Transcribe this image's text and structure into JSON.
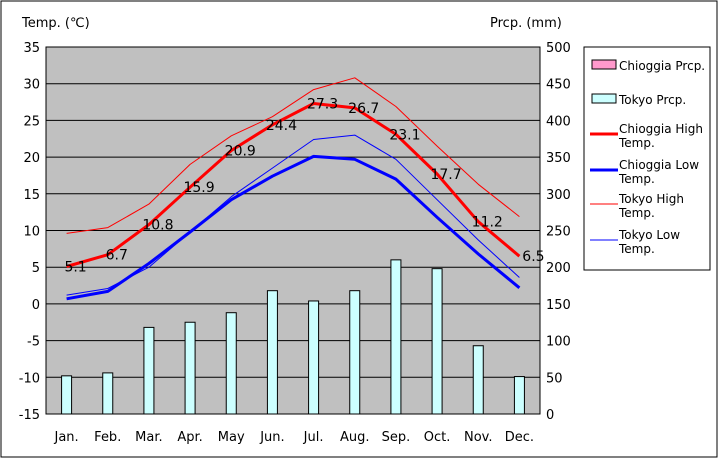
{
  "chart_data": {
    "type": "bar+line",
    "left_axis_title": "Temp. (℃)",
    "right_axis_title": "Prcp. (mm)",
    "categories": [
      "Jan.",
      "Feb.",
      "Mar.",
      "Apr.",
      "May",
      "Jun.",
      "Jul.",
      "Aug.",
      "Sep.",
      "Oct.",
      "Nov.",
      "Dec."
    ],
    "ylim_left": [
      -15,
      35
    ],
    "yticks_left": [
      -15,
      -10,
      -5,
      0,
      5,
      10,
      15,
      20,
      25,
      30,
      35
    ],
    "ylim_right": [
      0,
      500
    ],
    "yticks_right": [
      0,
      50,
      100,
      150,
      200,
      250,
      300,
      350,
      400,
      450,
      500
    ],
    "plot_background": "#c0c0c0",
    "bar_series": [
      {
        "name": "Chioggia Prcp.",
        "color": "#ff99cc",
        "values": [
          null,
          null,
          null,
          null,
          null,
          null,
          null,
          null,
          null,
          null,
          null,
          null
        ]
      },
      {
        "name": "Tokyo Prcp.",
        "color": "#ccffff",
        "values": [
          52,
          56,
          118,
          125,
          138,
          168,
          154,
          168,
          210,
          198,
          93,
          51
        ]
      }
    ],
    "line_series": [
      {
        "name": "Chioggia High Temp.",
        "color": "#ff0000",
        "width": 3,
        "values": [
          5.1,
          6.7,
          10.8,
          15.9,
          20.9,
          24.4,
          27.3,
          26.7,
          23.1,
          17.7,
          11.2,
          6.5
        ],
        "show_labels": true
      },
      {
        "name": "Chioggia Low Temp.",
        "color": "#0000ff",
        "width": 3,
        "values": [
          0.7,
          1.7,
          5.5,
          9.8,
          14.2,
          17.4,
          20.1,
          19.7,
          17.0,
          11.8,
          6.8,
          2.2
        ]
      },
      {
        "name": "Tokyo High Temp.",
        "color": "#ff0000",
        "width": 1,
        "values": [
          9.6,
          10.4,
          13.6,
          19.0,
          22.9,
          25.5,
          29.2,
          30.8,
          26.9,
          21.5,
          16.3,
          11.9
        ]
      },
      {
        "name": "Tokyo Low Temp.",
        "color": "#0000ff",
        "width": 1,
        "values": [
          1.2,
          2.1,
          5.0,
          9.8,
          14.6,
          18.5,
          22.4,
          23.0,
          19.7,
          14.2,
          8.7,
          3.6
        ]
      }
    ],
    "data_labels": [
      "5.1",
      "6.7",
      "10.8",
      "15.9",
      "20.9",
      "24.4",
      "27.3",
      "26.7",
      "23.1",
      "17.7",
      "11.2",
      "6.5"
    ],
    "legend": [
      {
        "name": "Chioggia Prcp.",
        "type": "box",
        "color": "#ff99cc"
      },
      {
        "name": "Tokyo Prcp.",
        "type": "box",
        "color": "#ccffff"
      },
      {
        "name": "Chioggia High Temp.",
        "type": "line",
        "color": "#ff0000",
        "width": 3
      },
      {
        "name": "Chioggia Low Temp.",
        "type": "line",
        "color": "#0000ff",
        "width": 3
      },
      {
        "name": "Tokyo High Temp.",
        "type": "line",
        "color": "#ff0000",
        "width": 1
      },
      {
        "name": "Tokyo Low Temp.",
        "type": "line",
        "color": "#0000ff",
        "width": 1
      }
    ],
    "legend_position": "right",
    "grid": "horizontal"
  }
}
